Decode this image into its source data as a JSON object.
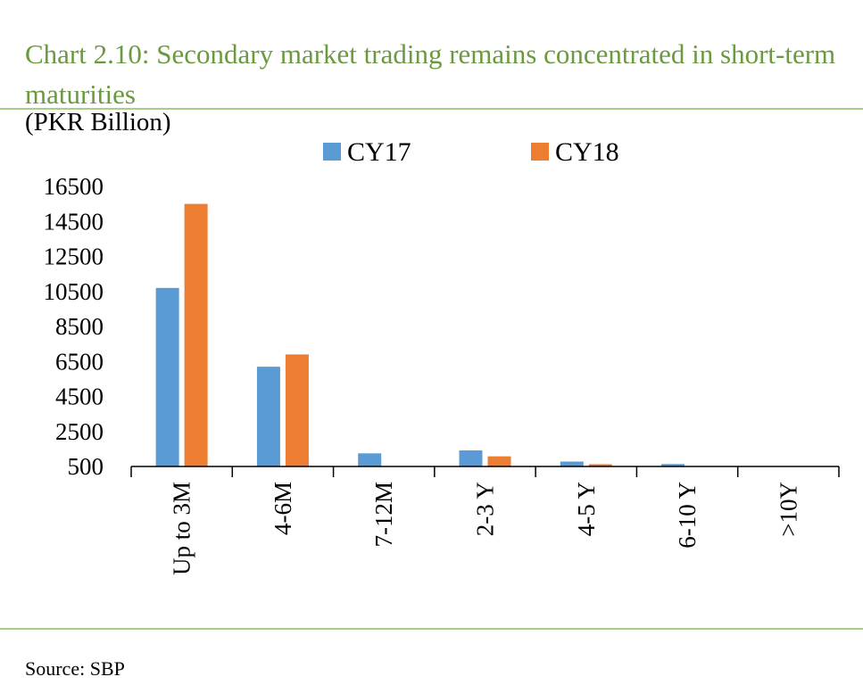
{
  "title": "Chart 2.10: Secondary market trading remains concentrated in short-term maturities",
  "unit_label": "(PKR Billion)",
  "source": "Source:  SBP",
  "colors": {
    "title": "#6a9a3f",
    "rule": "#a9cc86",
    "cy17": "#5b9bd5",
    "cy18": "#ed7d31"
  },
  "chart_data": {
    "type": "bar",
    "categories": [
      "Up to 3M",
      "4-6M",
      "7-12M",
      "2-3 Y",
      "4-5 Y",
      "6-10 Y",
      ">10Y"
    ],
    "series": [
      {
        "name": "CY17",
        "values": [
          10700,
          6200,
          1250,
          1420,
          780,
          640,
          0
        ]
      },
      {
        "name": "CY18",
        "values": [
          15500,
          6900,
          0,
          1080,
          630,
          0,
          0
        ]
      }
    ],
    "ylim": [
      500,
      16500
    ],
    "yticks": [
      500,
      2500,
      4500,
      6500,
      8500,
      10500,
      12500,
      14500,
      16500
    ],
    "ylabel": "(PKR Billion)",
    "legend_position": "top"
  }
}
